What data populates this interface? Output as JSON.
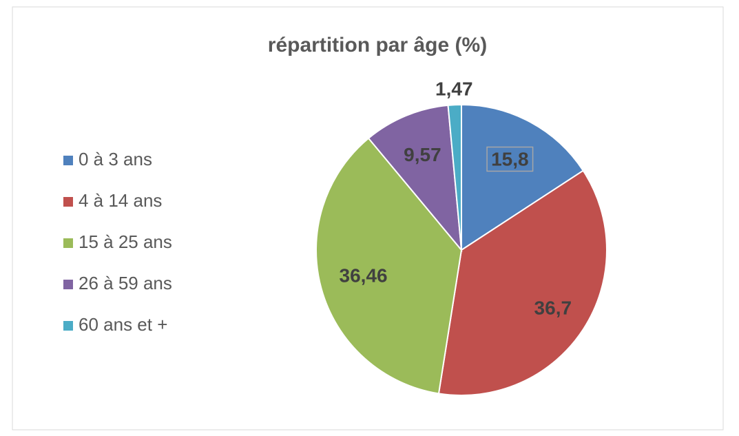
{
  "chart_data": {
    "type": "pie",
    "title": "répartition par âge (%)",
    "categories": [
      "0 à 3 ans",
      "4 à 14 ans",
      "15 à 25 ans",
      "26 à 59 ans",
      "60 ans et +"
    ],
    "values": [
      15.8,
      36.7,
      36.46,
      9.57,
      1.47
    ],
    "value_labels": [
      "15,8",
      "36,7",
      "36,46",
      "9,57",
      "1,47"
    ],
    "colors": [
      "#4f81bd",
      "#c0504d",
      "#9bbb59",
      "#8064a2",
      "#4bacc6"
    ],
    "legend": "left"
  }
}
